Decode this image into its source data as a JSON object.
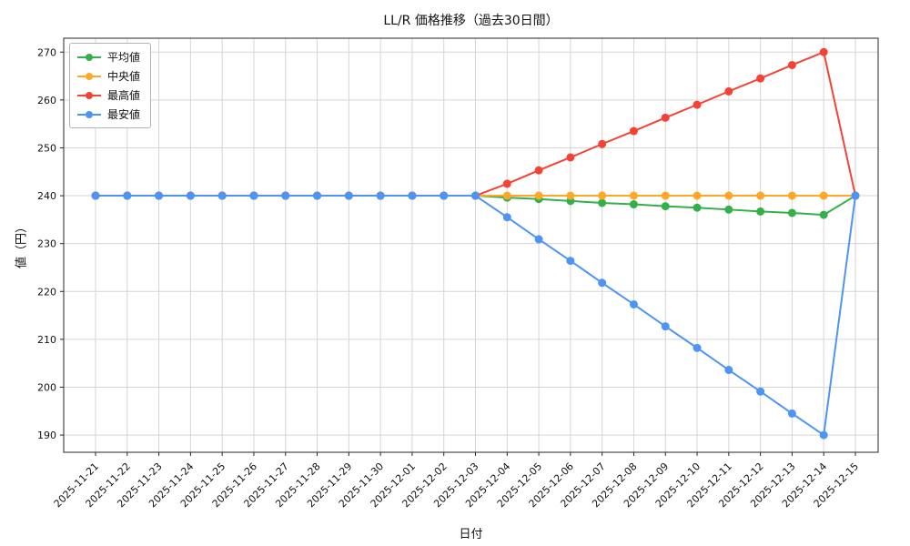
{
  "chart_data": {
    "type": "line",
    "title": "LL/R 価格推移（過去30日間）",
    "xlabel": "日付",
    "ylabel": "値（円）",
    "grid": true,
    "legend_position": "upper-left",
    "ylim": [
      186.4,
      272.9
    ],
    "yticks": [
      190,
      200,
      210,
      220,
      230,
      240,
      250,
      260,
      270
    ],
    "x": [
      "2025-11-21",
      "2025-11-22",
      "2025-11-23",
      "2025-11-24",
      "2025-11-25",
      "2025-11-26",
      "2025-11-27",
      "2025-11-28",
      "2025-11-29",
      "2025-11-30",
      "2025-12-01",
      "2025-12-02",
      "2025-12-03",
      "2025-12-04",
      "2025-12-05",
      "2025-12-06",
      "2025-12-07",
      "2025-12-08",
      "2025-12-09",
      "2025-12-10",
      "2025-12-11",
      "2025-12-12",
      "2025-12-13",
      "2025-12-14",
      "2025-12-15"
    ],
    "series": [
      {
        "key": "average",
        "name": "平均値",
        "color": "#34b04a",
        "values": [
          240,
          240,
          240,
          240,
          240,
          240,
          240,
          240,
          240,
          240,
          240,
          240,
          240,
          239.6,
          239.3,
          238.9,
          238.5,
          238.2,
          237.8,
          237.5,
          237.1,
          236.7,
          236.4,
          236.0,
          240
        ]
      },
      {
        "key": "median",
        "name": "中央値",
        "color": "#ffa726",
        "values": [
          240,
          240,
          240,
          240,
          240,
          240,
          240,
          240,
          240,
          240,
          240,
          240,
          240,
          240,
          240,
          240,
          240,
          240,
          240,
          240,
          240,
          240,
          240,
          240,
          240
        ]
      },
      {
        "key": "max",
        "name": "最高値",
        "color": "#f44336",
        "values": [
          240,
          240,
          240,
          240,
          240,
          240,
          240,
          240,
          240,
          240,
          240,
          240,
          240,
          242.5,
          245.3,
          248.0,
          250.8,
          253.5,
          256.3,
          259.0,
          261.8,
          264.5,
          267.3,
          270.0,
          240
        ]
      },
      {
        "key": "min",
        "name": "最安値",
        "color": "#4d94f5",
        "values": [
          240,
          240,
          240,
          240,
          240,
          240,
          240,
          240,
          240,
          240,
          240,
          240,
          240,
          235.5,
          230.9,
          226.4,
          221.8,
          217.3,
          212.7,
          208.2,
          203.6,
          199.1,
          194.5,
          190.0,
          240
        ]
      }
    ]
  }
}
